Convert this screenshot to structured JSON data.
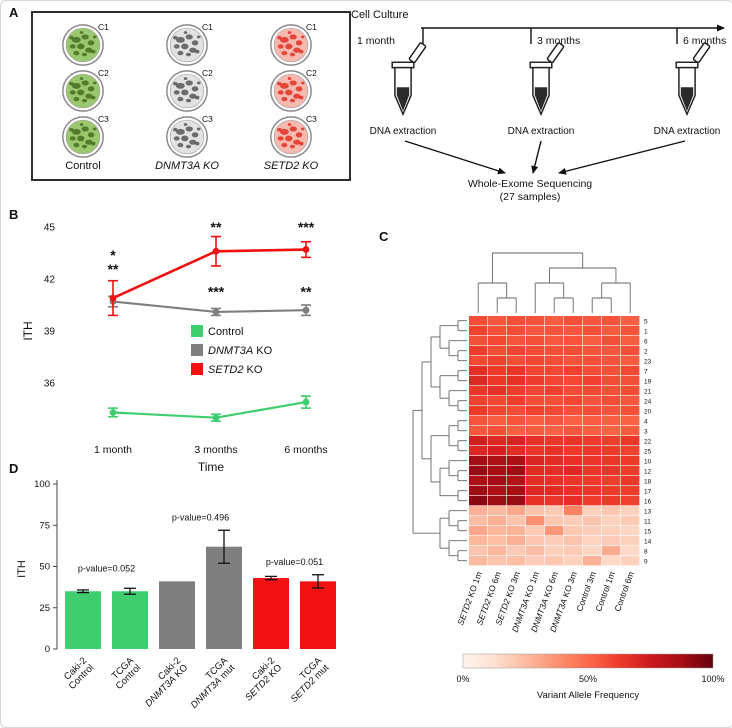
{
  "panelA": {
    "label": "A",
    "replicates": [
      "C1",
      "C2",
      "C3"
    ],
    "groups": [
      {
        "name": "Control",
        "italic": false,
        "dish_fill": "#9bc86e",
        "dish_blob": "#40691c"
      },
      {
        "name": "DNMT3A KO",
        "italic": true,
        "dish_fill": "#e2e2e2",
        "dish_blob": "#4d4d4d"
      },
      {
        "name": "SETD2 KO",
        "italic": true,
        "dish_fill": "#f6b9b0",
        "dish_blob": "#e0281c"
      }
    ],
    "timeline": {
      "title": "Cell Culture",
      "timepoints": [
        "1 month",
        "3 months",
        "6 months"
      ],
      "extraction_label": "DNA extraction",
      "sequencing_line1": "Whole-Exome Sequencing",
      "sequencing_line2": "(27 samples)"
    }
  },
  "panelB": {
    "label": "B"
  },
  "panelC": {
    "label": "C"
  },
  "panelD": {
    "label": "D"
  },
  "chart_data": [
    {
      "id": "ith-over-time",
      "type": "line",
      "xlabel": "Time",
      "ylabel": "ITH",
      "categories": [
        "1 month",
        "3 months",
        "6 months"
      ],
      "ylim": [
        33,
        45
      ],
      "yticks": [
        36,
        39,
        42,
        45
      ],
      "legend_position": "center-right",
      "series": [
        {
          "label": {
            "italic": "",
            "text": "Control"
          },
          "color": "#3fce6f",
          "values": [
            34.3,
            34.0,
            34.9
          ],
          "errors": [
            0.25,
            0.2,
            0.35
          ]
        },
        {
          "label": {
            "italic": "DNMT3A",
            "text": " KO"
          },
          "color": "#7f7f7f",
          "values": [
            40.7,
            40.1,
            40.2
          ],
          "errors": [
            0.3,
            0.2,
            0.3
          ]
        },
        {
          "label": {
            "italic": "SETD2",
            "text": " KO"
          },
          "color": "#f21111",
          "values": [
            40.9,
            43.6,
            43.7
          ],
          "errors": [
            1.0,
            0.85,
            0.45
          ]
        }
      ],
      "annotations": [
        {
          "text": "*",
          "color": "#f21111",
          "cat": 0,
          "value": 43.1
        },
        {
          "text": "**",
          "color": "#8a8a8a",
          "cat": 0,
          "value": 42.3
        },
        {
          "text": "**",
          "color": "#f21111",
          "cat": 1,
          "value": 44.7
        },
        {
          "text": "***",
          "color": "#8a8a8a",
          "cat": 1,
          "value": 41.0
        },
        {
          "text": "***",
          "color": "#f21111",
          "cat": 2,
          "value": 44.7
        },
        {
          "text": "**",
          "color": "#8a8a8a",
          "cat": 2,
          "value": 41.0
        }
      ]
    },
    {
      "id": "vaf-heatmap",
      "type": "heatmap",
      "colorbar_label": "Variant Allele Frequency",
      "colorbar_ticks": [
        "0%",
        "50%",
        "100%"
      ],
      "columns": [
        {
          "gene": "SETD2",
          "rest": " KO 1m"
        },
        {
          "gene": "SETD2",
          "rest": " KO 6m"
        },
        {
          "gene": "SETD2",
          "rest": " KO 3m"
        },
        {
          "gene": "DNMT3A",
          "rest": " KO 1m"
        },
        {
          "gene": "DNMT3A",
          "rest": " KO 6m"
        },
        {
          "gene": "DNMT3A",
          "rest": " KO 3m"
        },
        {
          "gene": "",
          "rest": "Control 3m"
        },
        {
          "gene": "",
          "rest": "Control 1m"
        },
        {
          "gene": "",
          "rest": "Control 6m"
        }
      ],
      "rows": [
        "5",
        "1",
        "6",
        "2",
        "23",
        "7",
        "19",
        "21",
        "24",
        "20",
        "4",
        "3",
        "22",
        "25",
        "10",
        "12",
        "18",
        "17",
        "16",
        "13",
        "11",
        "15",
        "14",
        "8",
        "9"
      ],
      "values": [
        [
          58,
          55,
          57,
          56,
          54,
          57,
          55,
          56,
          53
        ],
        [
          61,
          57,
          58,
          55,
          56,
          55,
          57,
          54,
          56
        ],
        [
          57,
          59,
          56,
          57,
          55,
          56,
          54,
          57,
          54
        ],
        [
          62,
          58,
          60,
          58,
          57,
          58,
          56,
          55,
          57
        ],
        [
          59,
          61,
          57,
          59,
          58,
          56,
          57,
          56,
          54
        ],
        [
          67,
          63,
          65,
          60,
          59,
          61,
          58,
          57,
          59
        ],
        [
          69,
          64,
          66,
          62,
          60,
          59,
          61,
          58,
          57
        ],
        [
          64,
          66,
          62,
          60,
          61,
          58,
          59,
          57,
          58
        ],
        [
          61,
          59,
          62,
          58,
          57,
          59,
          56,
          58,
          55
        ],
        [
          63,
          60,
          58,
          61,
          59,
          57,
          58,
          56,
          57
        ],
        [
          56,
          54,
          56,
          53,
          55,
          52,
          54,
          53,
          52
        ],
        [
          55,
          57,
          53,
          54,
          52,
          55,
          53,
          52,
          54
        ],
        [
          73,
          69,
          71,
          66,
          64,
          65,
          63,
          62,
          64
        ],
        [
          70,
          72,
          68,
          65,
          66,
          63,
          64,
          63,
          61
        ],
        [
          88,
          85,
          86,
          70,
          68,
          66,
          65,
          64,
          63
        ],
        [
          91,
          87,
          89,
          68,
          67,
          69,
          64,
          65,
          62
        ],
        [
          86,
          88,
          84,
          67,
          66,
          65,
          63,
          62,
          64
        ],
        [
          89,
          86,
          87,
          69,
          68,
          66,
          65,
          63,
          62
        ],
        [
          93,
          89,
          90,
          66,
          65,
          67,
          62,
          63,
          61
        ],
        [
          28,
          25,
          31,
          22,
          20,
          42,
          18,
          21,
          17
        ],
        [
          24,
          28,
          22,
          38,
          21,
          19,
          22,
          17,
          20
        ],
        [
          31,
          26,
          27,
          20,
          36,
          21,
          19,
          18,
          16
        ],
        [
          26,
          24,
          28,
          21,
          19,
          22,
          17,
          19,
          18
        ],
        [
          22,
          26,
          20,
          24,
          18,
          20,
          16,
          30,
          15
        ],
        [
          25,
          22,
          24,
          19,
          21,
          17,
          28,
          15,
          17
        ]
      ],
      "row_tree": [
        [
          [
            [
              [
                0,
                1
              ],
              [
                2,
                [
                  3,
                  4
                ]
              ]
            ],
            [
              [
                5,
                6
              ],
              [
                7,
                [
                  8,
                  9
                ]
              ]
            ]
          ],
          [
            [
              [
                10,
                11
              ],
              [
                12,
                13
              ]
            ],
            [
              [
                14,
                [
                  15,
                  16
                ]
              ],
              [
                17,
                18
              ]
            ]
          ]
        ],
        [
          [
            19,
            [
              20,
              21
            ]
          ],
          [
            22,
            [
              23,
              24
            ]
          ]
        ]
      ],
      "col_tree": [
        [
          0,
          [
            1,
            2
          ]
        ],
        [
          [
            3,
            [
              4,
              5
            ]
          ],
          [
            [
              6,
              7
            ],
            8
          ]
        ]
      ],
      "color_stops": [
        "#fff5f0",
        "#fee0d2",
        "#fcbba1",
        "#fc9272",
        "#fb6a4a",
        "#ef3b2c",
        "#cb181d",
        "#a50f15",
        "#67000d"
      ]
    },
    {
      "id": "ith-bars",
      "type": "bar",
      "ylabel": "ITH",
      "ylim": [
        0,
        100
      ],
      "yticks": [
        0,
        25,
        50,
        75,
        100
      ],
      "categories": [
        {
          "line1": "Caki-2",
          "gene": "",
          "rest": "Control"
        },
        {
          "line1": "TCGA",
          "gene": "",
          "rest": "Control"
        },
        {
          "line1": "Caki-2",
          "gene": "DNMT3A",
          "rest": " KO"
        },
        {
          "line1": "TCGA",
          "gene": "DNMT3A",
          "rest": " mut"
        },
        {
          "line1": "Caki-2",
          "gene": "SETD2",
          "rest": " KO"
        },
        {
          "line1": "TCGA",
          "gene": "SETD2",
          "rest": " mut"
        }
      ],
      "values": [
        35,
        35,
        41,
        62,
        43,
        41
      ],
      "errors": [
        0.8,
        1.8,
        0,
        10,
        1,
        4
      ],
      "colors": [
        "#3fce6f",
        "#3fce6f",
        "#7f7f7f",
        "#7f7f7f",
        "#f21111",
        "#f21111"
      ],
      "pvalues": [
        {
          "text": "p-value=0.052",
          "between": [
            0,
            1
          ],
          "value": 47
        },
        {
          "text": "p-value=0.496",
          "between": [
            2,
            3
          ],
          "value": 78
        },
        {
          "text": "p-value=0.051",
          "between": [
            4,
            5
          ],
          "value": 51
        }
      ]
    }
  ]
}
